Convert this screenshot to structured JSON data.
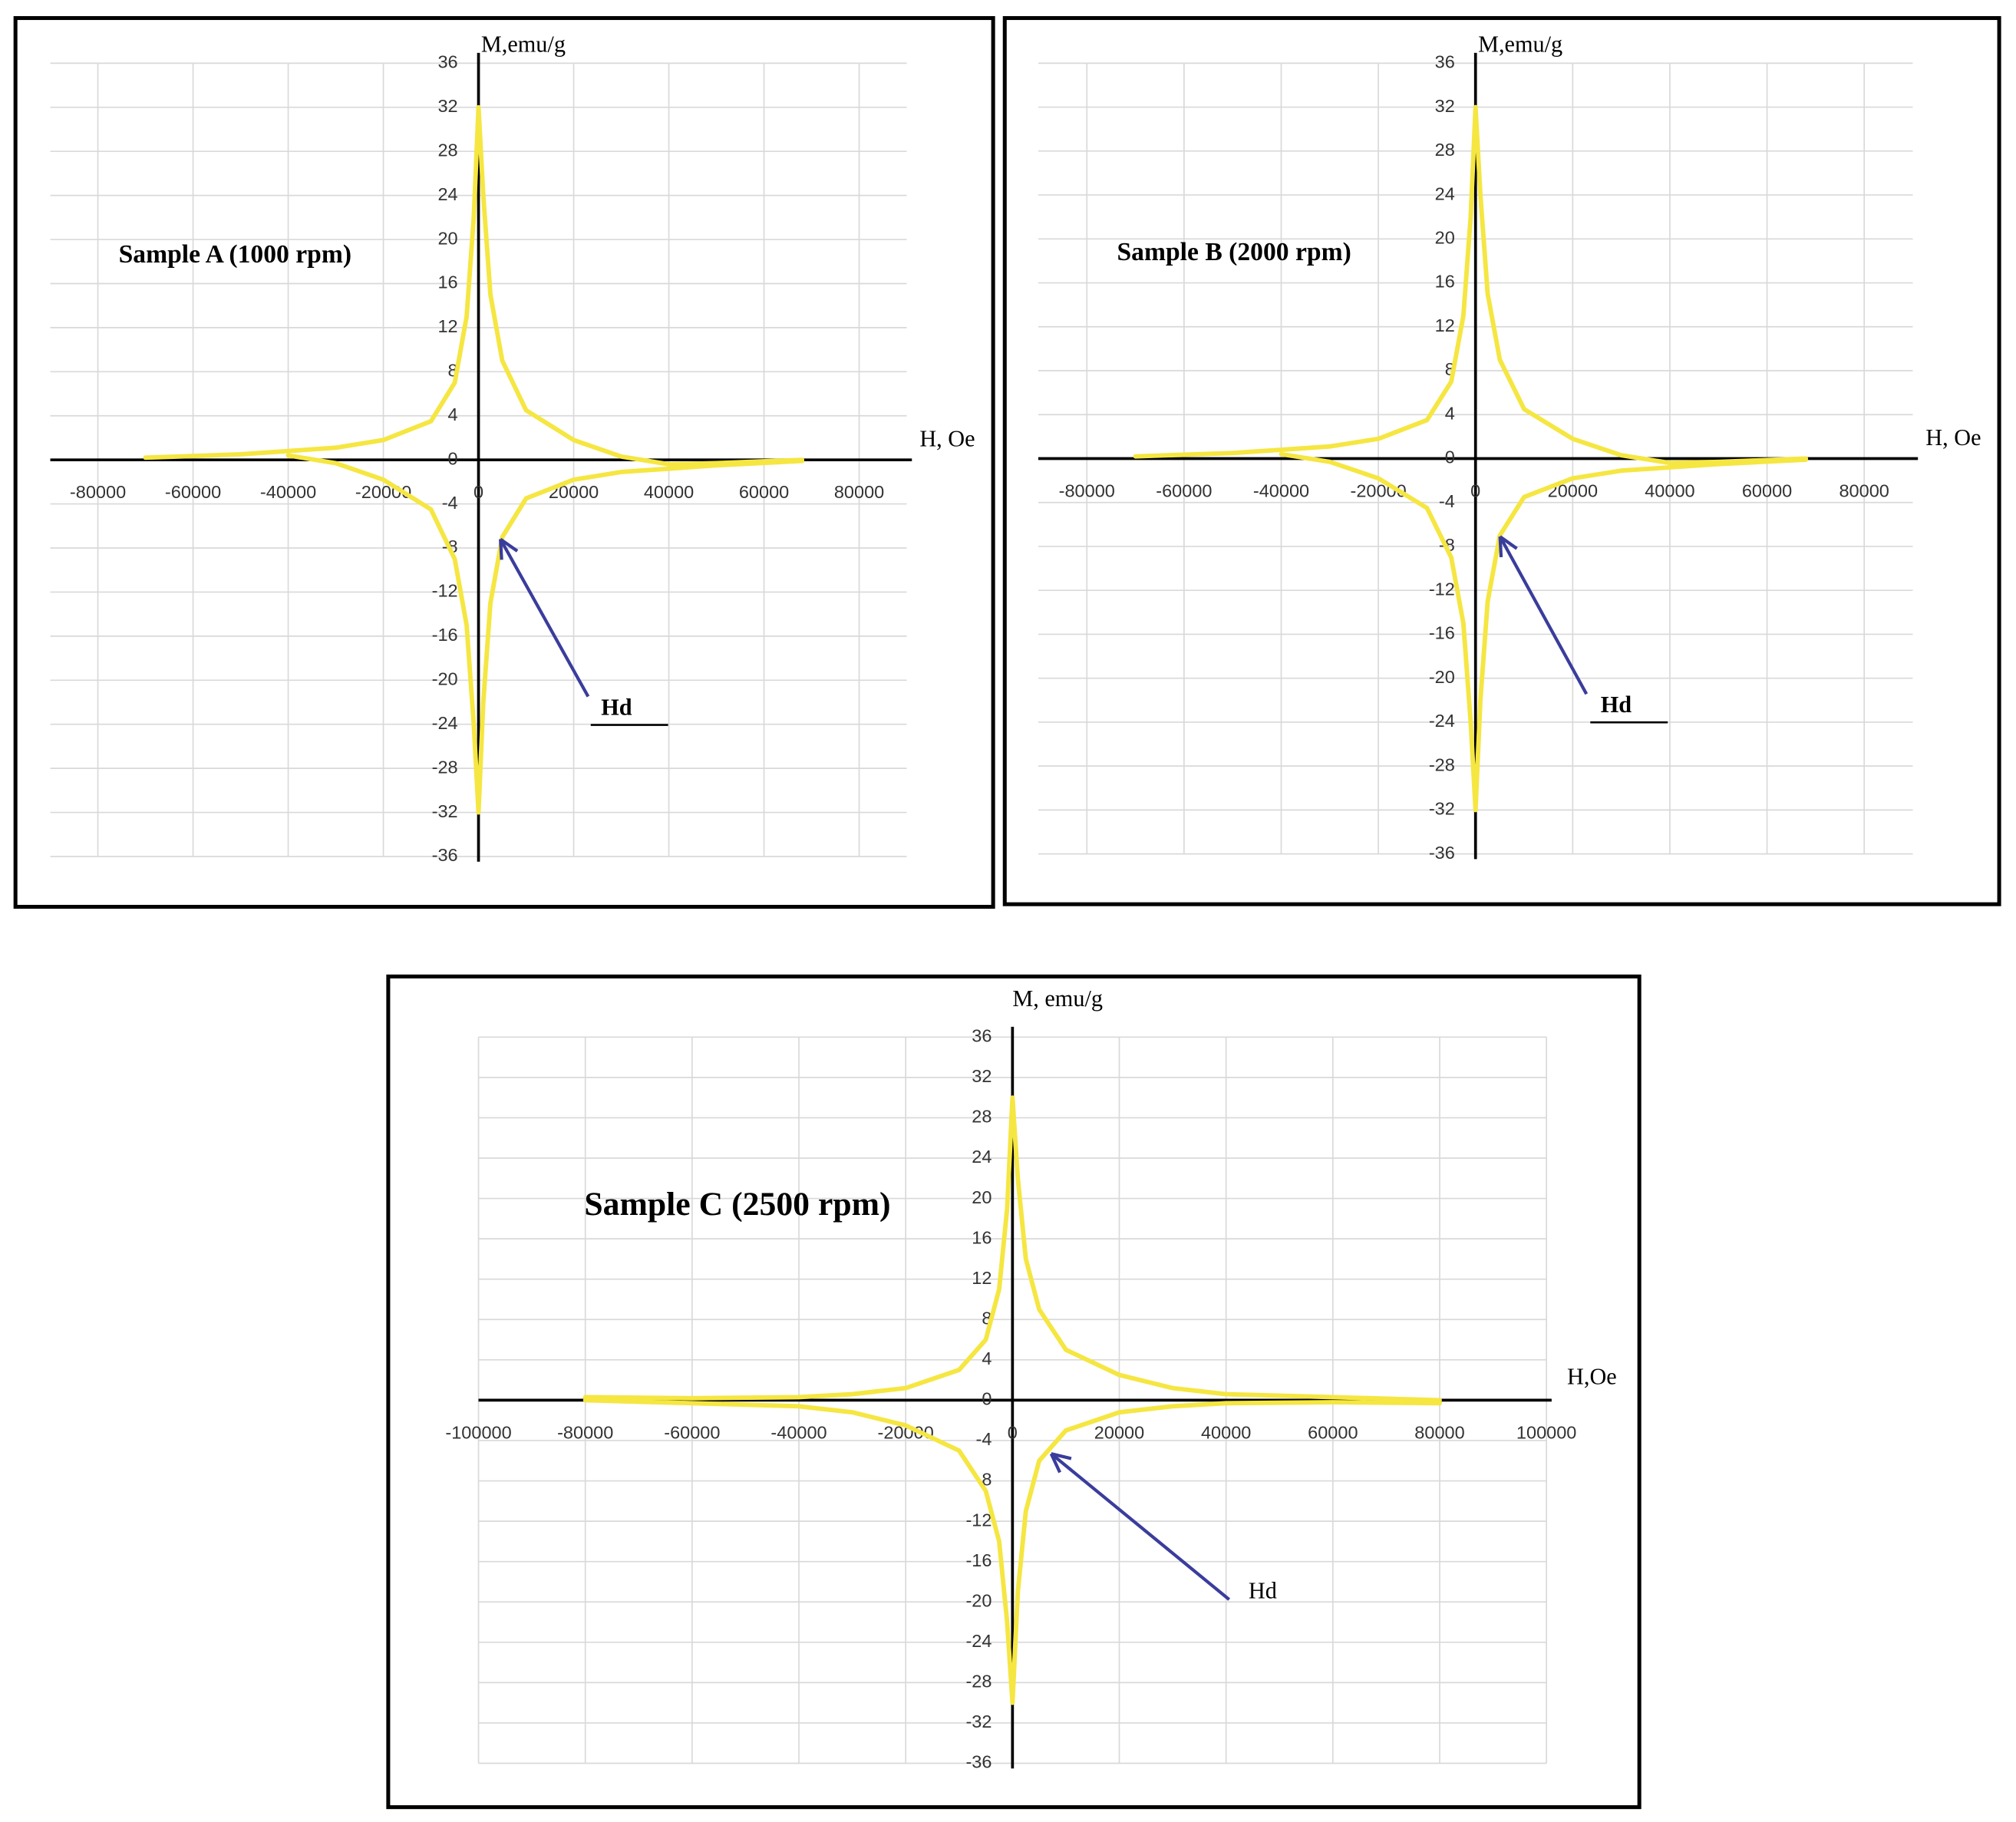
{
  "chart_data": [
    {
      "type": "line",
      "title": "Sample A (1000 rpm)",
      "xlabel": "H, Oe",
      "ylabel": "M,emu/g",
      "annotation": "Hd",
      "grid": true,
      "xlim": [
        -90000,
        90000
      ],
      "ylim": [
        -36,
        36
      ],
      "xticks": [
        -80000,
        -60000,
        -40000,
        -20000,
        0,
        20000,
        40000,
        60000,
        80000
      ],
      "yticks": [
        36,
        32,
        28,
        24,
        20,
        16,
        12,
        8,
        4,
        0,
        -4,
        -8,
        -12,
        -16,
        -20,
        -24,
        -28,
        -32,
        -36
      ],
      "x": [
        -70000,
        -50000,
        -40000,
        -30000,
        -20000,
        -10000,
        -5000,
        -2500,
        -1000,
        0,
        1000,
        2500,
        5000,
        10000,
        20000,
        30000,
        40000,
        50000,
        68000
      ],
      "series": [
        {
          "color": "#f5e642",
          "values": [
            0.2,
            0.5,
            0.8,
            1.1,
            1.8,
            3.5,
            7,
            13,
            22,
            32,
            24,
            15,
            9,
            4.5,
            1.8,
            0.3,
            -0.4,
            -0.3,
            0
          ]
        },
        {
          "color": "#f5e642",
          "values": [
            null,
            null,
            0.4,
            -0.3,
            -1.8,
            -4.5,
            -9,
            -15,
            -24,
            -32,
            -22,
            -13,
            -7,
            -3.5,
            -1.8,
            -1.1,
            -0.8,
            -0.5,
            -0.1
          ]
        }
      ]
    },
    {
      "type": "line",
      "title": "Sample B (2000 rpm)",
      "xlabel": "H, Oe",
      "ylabel": "M,emu/g",
      "annotation": "Hd",
      "grid": true,
      "xlim": [
        -90000,
        90000
      ],
      "ylim": [
        -36,
        36
      ],
      "xticks": [
        -80000,
        -60000,
        -40000,
        -20000,
        0,
        20000,
        40000,
        60000,
        80000
      ],
      "yticks": [
        36,
        32,
        28,
        24,
        20,
        16,
        12,
        8,
        4,
        0,
        -4,
        -8,
        -12,
        -16,
        -20,
        -24,
        -28,
        -32,
        -36
      ],
      "x": [
        -70000,
        -50000,
        -40000,
        -30000,
        -20000,
        -10000,
        -5000,
        -2500,
        -1000,
        0,
        1000,
        2500,
        5000,
        10000,
        20000,
        30000,
        40000,
        50000,
        68000
      ],
      "series": [
        {
          "color": "#f5e642",
          "values": [
            0.2,
            0.5,
            0.8,
            1.1,
            1.8,
            3.5,
            7,
            13,
            22,
            32,
            24,
            15,
            9,
            4.5,
            1.8,
            0.3,
            -0.4,
            -0.3,
            0
          ]
        },
        {
          "color": "#f5e642",
          "values": [
            null,
            null,
            0.4,
            -0.3,
            -1.8,
            -4.5,
            -9,
            -15,
            -24,
            -32,
            -22,
            -13,
            -7,
            -3.5,
            -1.8,
            -1.1,
            -0.8,
            -0.5,
            -0.1
          ]
        }
      ]
    },
    {
      "type": "line",
      "title": "Sample C (2500 rpm)",
      "xlabel": "H,Oe",
      "ylabel": "M, emu/g",
      "annotation": "Hd",
      "grid": true,
      "xlim": [
        -100000,
        100000
      ],
      "ylim": [
        -36,
        36
      ],
      "xticks": [
        -100000,
        -80000,
        -60000,
        -40000,
        -20000,
        0,
        20000,
        40000,
        60000,
        80000,
        100000
      ],
      "yticks": [
        36,
        32,
        28,
        24,
        20,
        16,
        12,
        8,
        4,
        0,
        -4,
        -8,
        -12,
        -16,
        -20,
        -24,
        -28,
        -32,
        -36
      ],
      "x": [
        -80000,
        -60000,
        -40000,
        -30000,
        -20000,
        -10000,
        -5000,
        -2500,
        -1000,
        0,
        1000,
        2500,
        5000,
        10000,
        20000,
        30000,
        40000,
        60000,
        80000
      ],
      "series": [
        {
          "color": "#f5e642",
          "values": [
            0.3,
            0.2,
            0.3,
            0.6,
            1.2,
            3,
            6,
            11,
            19,
            30,
            22,
            14,
            9,
            5,
            2.5,
            1.2,
            0.6,
            0.3,
            0
          ]
        },
        {
          "color": "#f5e642",
          "values": [
            0,
            -0.3,
            -0.6,
            -1.2,
            -2.5,
            -5,
            -9,
            -14,
            -22,
            -30,
            -19,
            -11,
            -6,
            -3,
            -1.2,
            -0.6,
            -0.3,
            -0.2,
            -0.3
          ]
        }
      ]
    }
  ]
}
